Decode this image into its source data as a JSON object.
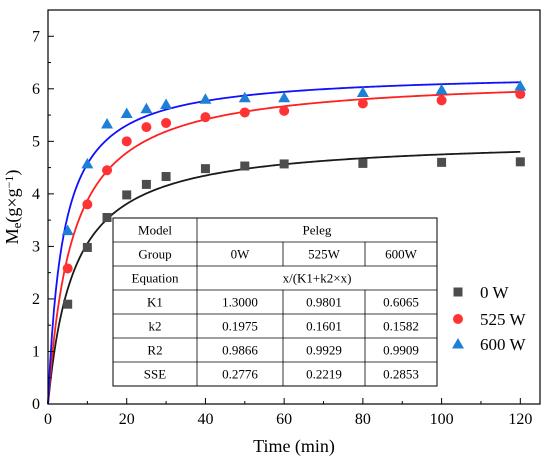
{
  "chart_data": {
    "type": "scatter",
    "xlabel": "Time (min)",
    "ylabel": {
      "base": "M",
      "sub": "e",
      "rest": "(g×g",
      "sup": "−1",
      "close": ")"
    },
    "xlim": [
      0,
      125
    ],
    "ylim": [
      0,
      7.5
    ],
    "xticks": [
      0,
      20,
      40,
      60,
      80,
      100,
      120
    ],
    "yticks": [
      0,
      1,
      2,
      3,
      4,
      5,
      6,
      7
    ],
    "grid": false,
    "legend_position": "right-middle",
    "series": [
      {
        "name": "0 W",
        "color": "#4d4d4d",
        "curve_color": "#1a1a1a",
        "marker": "square",
        "x": [
          5,
          10,
          15,
          20,
          25,
          30,
          40,
          50,
          60,
          80,
          100,
          120
        ],
        "y": [
          1.9,
          2.98,
          3.55,
          3.98,
          4.18,
          4.33,
          4.48,
          4.53,
          4.57,
          4.58,
          4.6,
          4.61
        ],
        "fit": {
          "K1": 1.3,
          "k2": 0.1975
        }
      },
      {
        "name": "525 W",
        "color": "#ff3333",
        "curve_color": "#ff2020",
        "marker": "circle",
        "x": [
          5,
          10,
          15,
          20,
          25,
          30,
          40,
          50,
          60,
          80,
          100,
          120
        ],
        "y": [
          2.58,
          3.8,
          4.45,
          5.0,
          5.27,
          5.35,
          5.46,
          5.55,
          5.58,
          5.72,
          5.78,
          5.9
        ],
        "fit": {
          "K1": 0.9801,
          "k2": 0.1601
        }
      },
      {
        "name": "600 W",
        "color": "#1f7fd6",
        "curve_color": "#1010ff",
        "marker": "triangle",
        "x": [
          5,
          10,
          15,
          20,
          25,
          30,
          40,
          50,
          60,
          80,
          100,
          120
        ],
        "y": [
          3.3,
          4.57,
          5.33,
          5.53,
          5.62,
          5.7,
          5.8,
          5.83,
          5.83,
          5.93,
          5.98,
          6.05
        ],
        "fit": {
          "K1": 0.6065,
          "k2": 0.1582
        }
      }
    ],
    "table": {
      "rows": [
        [
          "Model",
          "Peleg"
        ],
        [
          "Group",
          "0W",
          "525W",
          "600W"
        ],
        [
          "Equation",
          "x/(K1+k2×x)"
        ],
        [
          "K1",
          "1.3000",
          "0.9801",
          "0.6065"
        ],
        [
          "k2",
          "0.1975",
          "0.1601",
          "0.1582"
        ],
        [
          "R2",
          "0.9866",
          "0.9929",
          "0.9909"
        ],
        [
          "SSE",
          "0.2776",
          "0.2219",
          "0.2853"
        ]
      ]
    }
  }
}
